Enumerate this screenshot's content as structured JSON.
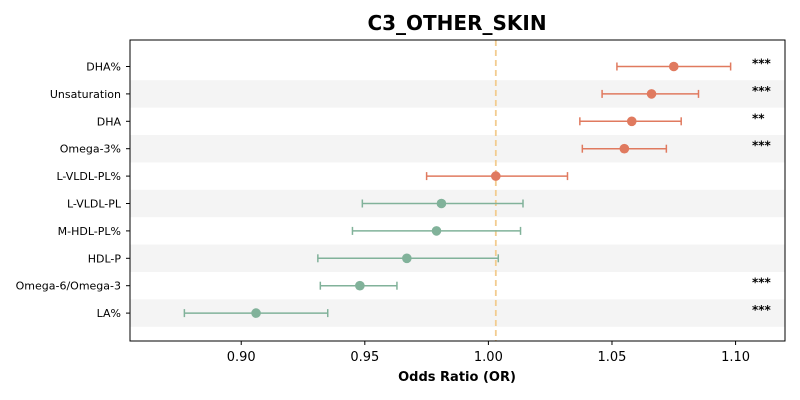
{
  "chart_data": {
    "type": "forest",
    "title": "C3_OTHER_SKIN",
    "xlabel": "Odds Ratio (OR)",
    "xlim": [
      0.855,
      1.12
    ],
    "xticks": [
      0.9,
      0.95,
      1.0,
      1.05,
      1.1
    ],
    "xtick_labels": [
      "0.90",
      "0.95",
      "1.00",
      "1.05",
      "1.10"
    ],
    "reference_line": 1.003,
    "colors": {
      "positive": "#e07a5f",
      "negative": "#81b29a",
      "reference": "#f2cc8f",
      "band": "#f4f4f4"
    },
    "rows": [
      {
        "label": "DHA%",
        "or": 1.075,
        "lo": 1.052,
        "hi": 1.098,
        "sig": "***"
      },
      {
        "label": "Unsaturation",
        "or": 1.066,
        "lo": 1.046,
        "hi": 1.085,
        "sig": "***"
      },
      {
        "label": "DHA",
        "or": 1.058,
        "lo": 1.037,
        "hi": 1.078,
        "sig": "**"
      },
      {
        "label": "Omega-3%",
        "or": 1.055,
        "lo": 1.038,
        "hi": 1.072,
        "sig": "***"
      },
      {
        "label": "L-VLDL-PL%",
        "or": 1.003,
        "lo": 0.975,
        "hi": 1.032,
        "sig": ""
      },
      {
        "label": "L-VLDL-PL",
        "or": 0.981,
        "lo": 0.949,
        "hi": 1.014,
        "sig": ""
      },
      {
        "label": "M-HDL-PL%",
        "or": 0.979,
        "lo": 0.945,
        "hi": 1.013,
        "sig": ""
      },
      {
        "label": "HDL-P",
        "or": 0.967,
        "lo": 0.931,
        "hi": 1.004,
        "sig": ""
      },
      {
        "label": "Omega-6/Omega-3",
        "or": 0.948,
        "lo": 0.932,
        "hi": 0.963,
        "sig": "***"
      },
      {
        "label": "LA%",
        "or": 0.906,
        "lo": 0.877,
        "hi": 0.935,
        "sig": "***"
      }
    ]
  }
}
